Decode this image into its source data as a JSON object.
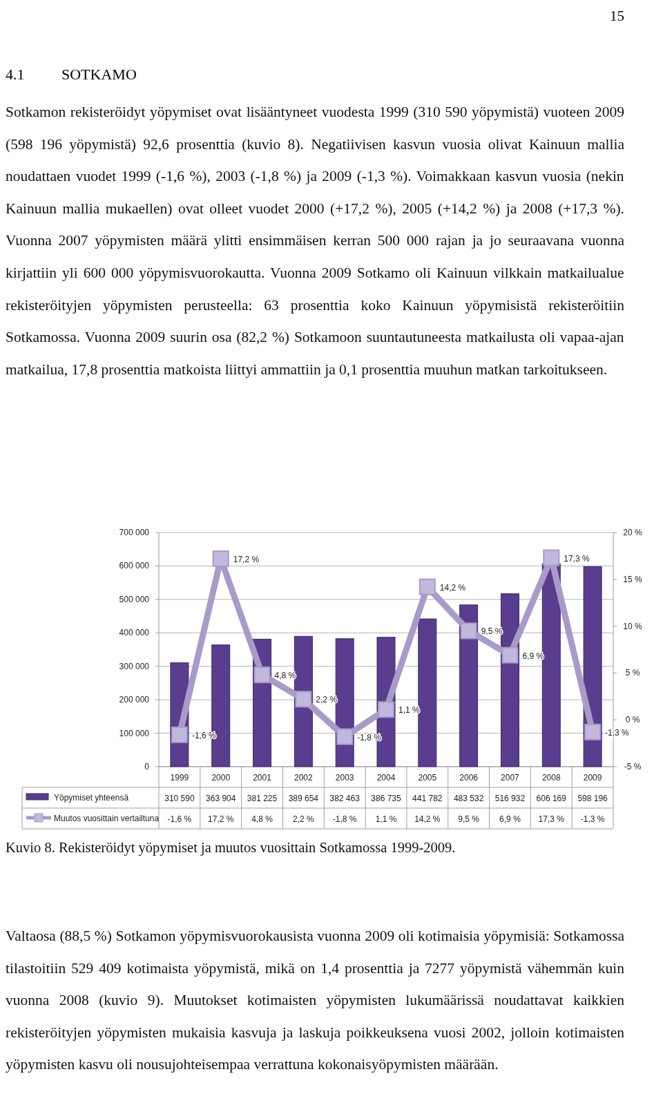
{
  "chart_data": {
    "type": "bar",
    "title": "Kuvio 8. Rekisteröidyt yöpymiset ja muutos vuosittain Sotkamossa 1999-2009.",
    "annotations": [
      "15",
      "4.1 SOTKAMO",
      "Sotkamon rekisteröidyt yöpymiset ovat lisääntyneet vuodesta 1999 (310 590 yöpymistä) vuoteen 2009 (598 196 yöpymistä) 92,6 prosenttia (kuvio 8). Negatiivisen kasvun vuosia olivat Kainuun mallia noudattaen vuodet 1999 (-1,6 %), 2003 (-1,8 %) ja 2009 (-1,3 %). Voimakkaan kasvun vuosia (nekin Kainuun mallia mukaellen) ovat olleet vuodet 2000 (+17,2 %), 2005 (+14,2 %) ja 2008 (+17,3 %). Vuonna 2007 yöpymisten määrä ylitti ensimmäisen kerran 500 000 rajan ja jo seuraavana vuonna kirjattiin yli 600 000 yöpymisvuorokautta. Vuonna 2009 Sotkamo oli Kainuun vilkkain matkailualue rekisteröityjen yöpymisten perusteella: 63 prosenttia koko Kainuun yöpymisistä rekisteröitiin Sotkamossa. Vuonna 2009 suurin osa (82,2 %) Sotkamoon suuntautuneesta matkailusta oli vapaa-ajan matkailua, 17,8 prosenttia matkoista liittyi ammattiin ja 0,1 prosenttia muuhun matkan tarkoitukseen.",
      "Valtaosa (88,5 %) Sotkamon yöpymisvuorokausista vuonna 2009 oli kotimaisia yöpymisiä: Sotkamossa tilastoitiin 529 409 kotimaista yöpymistä, mikä on 1,4 prosenttia ja 7277 yöpymistä vähemmän kuin vuonna 2008 (kuvio 9). Muutokset kotimaisten yöpymisten lukumäärissä noudattavat kaikkien rekisteröityjen yöpymisten mukaisia kasvuja ja laskuja poikkeuksena vuosi 2002, jolloin kotimaisten yöpymisten kasvu oli nousujohteisempaa verrattuna kokonaisyöpymisten määrään."
    ],
    "categories": [
      "1999",
      "2000",
      "2001",
      "2002",
      "2003",
      "2004",
      "2005",
      "2006",
      "2007",
      "2008",
      "2009"
    ],
    "ylim": [
      0,
      700000
    ],
    "yticks": [
      0,
      {
        "value": 100000,
        "label": "100 000"
      },
      {
        "value": 200000,
        "label": "200 000"
      },
      {
        "value": 300000,
        "label": "300 000"
      },
      {
        "value": 400000,
        "label": "400 000"
      },
      {
        "value": 500000,
        "label": "500 000"
      },
      {
        "value": 600000,
        "label": "600 000"
      },
      {
        "value": 700000,
        "label": "700 000"
      }
    ],
    "y2lim": [
      -5,
      20
    ],
    "y2ticks": [
      {
        "value": -5,
        "label": "-5 %"
      },
      {
        "value": 0,
        "label": "0 %"
      },
      {
        "value": 5,
        "label": "5 %"
      },
      {
        "value": 10,
        "label": "10 %"
      },
      {
        "value": 15,
        "label": "15 %"
      },
      {
        "value": 20,
        "label": "20 %"
      }
    ],
    "grid": "y",
    "legend": "bottom",
    "marker": "square",
    "line_style": "solid",
    "series": [
      {
        "name": "Yöpymiset yhteensä",
        "color": "#5b3d8f",
        "values": [
          310590,
          363904,
          381225,
          389654,
          382463,
          386735,
          441782,
          483532,
          516932,
          606169,
          598196
        ],
        "value_labels": [
          "310 590",
          "363 904",
          "381 225",
          "389 654",
          "382 463",
          "386 735",
          "441 782",
          "483 532",
          "516 932",
          "606 169",
          "598 196"
        ]
      },
      {
        "name": "Muutos vuosittain vertailtuna",
        "type": "line",
        "axis": "y2",
        "color": "#a89bc9",
        "values": [
          -1.6,
          17.2,
          4.8,
          2.2,
          -1.8,
          1.1,
          14.2,
          9.5,
          6.9,
          17.3,
          -1.3
        ],
        "value_labels": [
          "-1,6 %",
          "17,2 %",
          "4,8 %",
          "2,2 %",
          "-1,8 %",
          "1,1 %",
          "14,2 %",
          "9,5 %",
          "6,9 %",
          "17,3 %",
          "-1,3 %"
        ]
      }
    ]
  }
}
